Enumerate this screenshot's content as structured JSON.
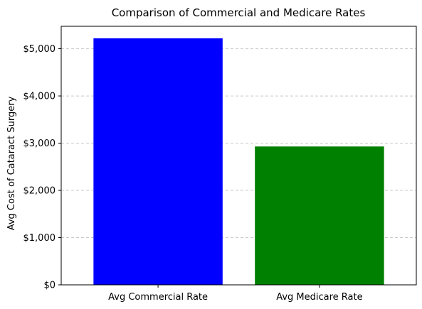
{
  "chart_data": {
    "type": "bar",
    "title": "Comparison of Commercial and Medicare Rates",
    "xlabel": "",
    "ylabel": "Avg Cost of Cataract Surgery",
    "categories": [
      "Avg Commercial Rate",
      "Avg Medicare Rate"
    ],
    "values": [
      5220,
      2930
    ],
    "colors": [
      "#0000ff",
      "#008000"
    ],
    "ylim": [
      0,
      5475
    ],
    "yticks": [
      0,
      1000,
      2000,
      3000,
      4000,
      5000
    ],
    "ytick_labels": [
      "$0",
      "$1,000",
      "$2,000",
      "$3,000",
      "$4,000",
      "$5,000"
    ],
    "grid": "y-dashed",
    "legend": "none"
  }
}
